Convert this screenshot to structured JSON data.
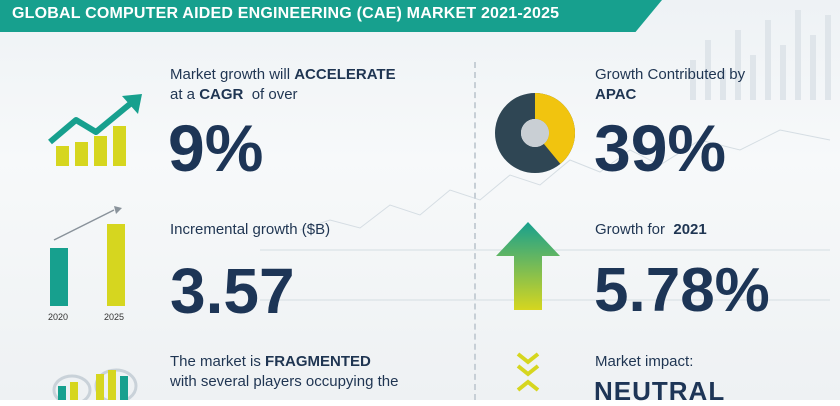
{
  "header": {
    "title": "GLOBAL COMPUTER AIDED ENGINEERING (CAE) MARKET 2021-2025"
  },
  "colors": {
    "teal": "#17a08e",
    "yellow": "#d6d61f",
    "navy": "#1d3556",
    "donut_gray": "#2f4654"
  },
  "left": {
    "growth": {
      "line1_prefix": "Market growth will ",
      "line1_strong": "ACCELERATE",
      "line2_prefix": "at a ",
      "line2_strong": "CAGR",
      "line2_suffix": "  of over",
      "value": "9%",
      "icon": "growth-chart-icon"
    },
    "incremental": {
      "label": "Incremental growth ($B)",
      "value": "3.57",
      "bar_labels": [
        "2020",
        "2025"
      ],
      "icon": "bar-compare-icon"
    },
    "market": {
      "line1_prefix": "The market is ",
      "line1_strong": "FRAGMENTED",
      "line2": "with several players occupying the",
      "icon": "players-icon"
    }
  },
  "right": {
    "apac": {
      "line1": "Growth Contributed by",
      "line2_strong": "APAC",
      "value": "39%",
      "share": 0.39,
      "icon": "donut-chart-icon"
    },
    "y2021": {
      "label_prefix": "Growth for  ",
      "label_strong": "2021",
      "value": "5.78%",
      "icon": "up-arrow-icon"
    },
    "impact": {
      "label": "Market impact:",
      "value": "NEUTRAL",
      "icon": "neutral-arrows-icon"
    }
  }
}
